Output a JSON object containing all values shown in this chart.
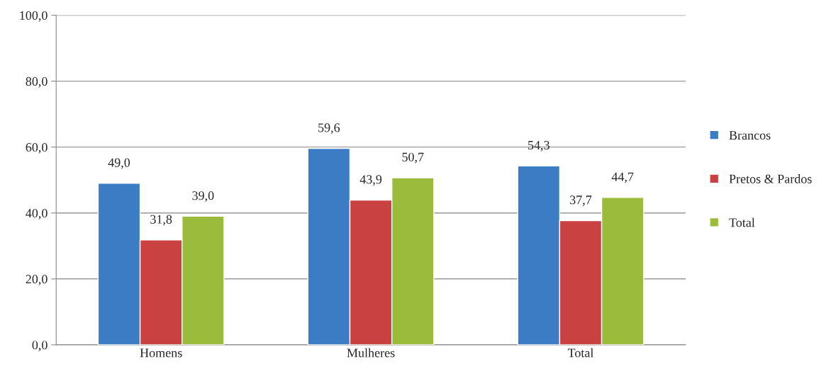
{
  "chart_data": {
    "type": "bar",
    "categories": [
      "Homens",
      "Mulheres",
      "Total"
    ],
    "series": [
      {
        "name": "Brancos",
        "color": "#3b7cc4",
        "values": [
          49.0,
          59.6,
          54.3
        ],
        "value_labels": [
          "49,0",
          "59,6",
          "54,3"
        ]
      },
      {
        "name": "Pretos & Pardos",
        "color": "#c94141",
        "values": [
          31.8,
          43.9,
          37.7
        ],
        "value_labels": [
          "31,8",
          "43,9",
          "37,7"
        ]
      },
      {
        "name": "Total",
        "color": "#9bbb3c",
        "values": [
          39.0,
          50.7,
          44.7
        ],
        "value_labels": [
          "39,0",
          "50,7",
          "44,7"
        ]
      }
    ],
    "ylim": [
      0,
      100
    ],
    "yticks": [
      {
        "value": 0,
        "label": "0,0"
      },
      {
        "value": 20,
        "label": "20,0"
      },
      {
        "value": 40,
        "label": "40,0"
      },
      {
        "value": 60,
        "label": "60,0"
      },
      {
        "value": 80,
        "label": "80,0"
      },
      {
        "value": 100,
        "label": "100,0"
      }
    ],
    "grid": "y",
    "legend": "right"
  }
}
